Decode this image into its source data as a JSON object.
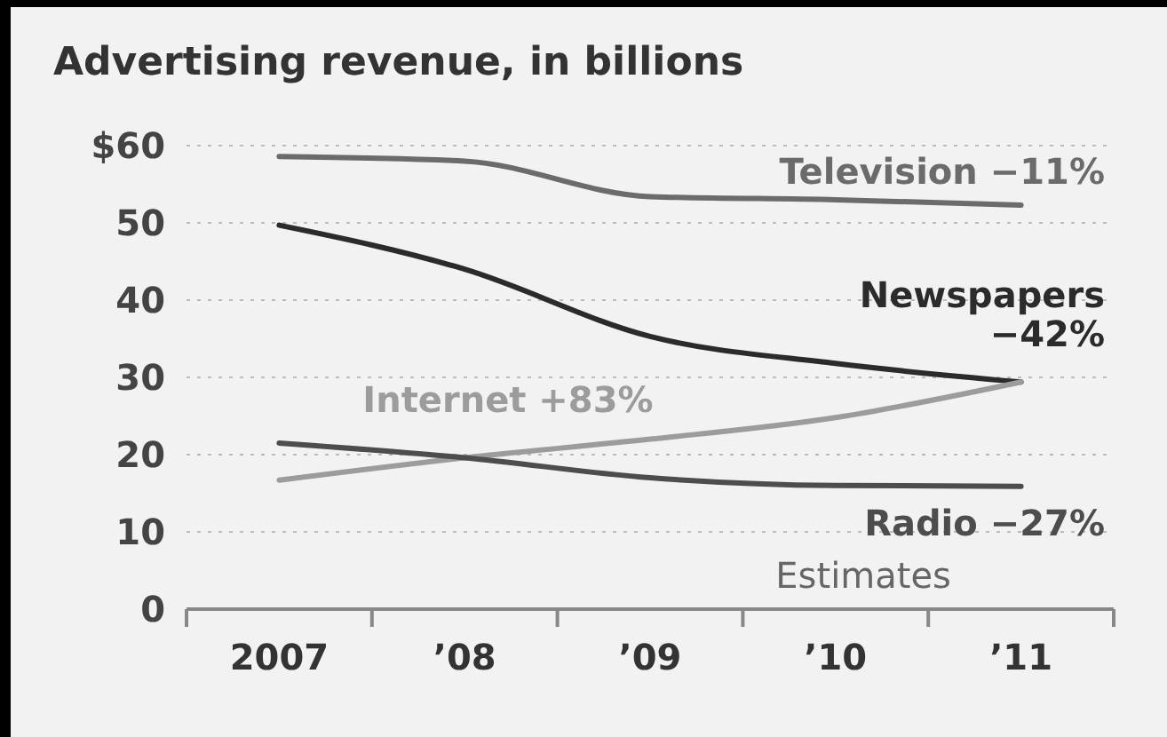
{
  "chart_data": {
    "type": "line",
    "title": "Advertising revenue, in billions",
    "categories": [
      "2007",
      "’08",
      "’09",
      "’10",
      "’11"
    ],
    "series": [
      {
        "name": "Television −11%",
        "color": "#6b6b6b",
        "values": [
          58.6,
          58,
          53.4,
          53,
          52.3
        ]
      },
      {
        "name": "Newspapers −42%",
        "color": "#2b2b2b",
        "values": [
          49.7,
          44,
          35.3,
          31.8,
          29.4
        ]
      },
      {
        "name": "Internet +83%",
        "color": "#9c9c9c",
        "values": [
          16.7,
          19.6,
          22,
          24.8,
          29.4
        ]
      },
      {
        "name": "Radio −27%",
        "color": "#4d4d4d",
        "values": [
          21.5,
          19.6,
          17,
          16,
          15.9
        ]
      }
    ],
    "ylim": [
      0,
      60
    ],
    "yticks": [
      0,
      10,
      20,
      30,
      40,
      50,
      {
        "value": 60,
        "label": "$60"
      }
    ],
    "grid": "y",
    "marker": "none",
    "line_style": "solid",
    "annotations": [
      "Estimates"
    ]
  }
}
